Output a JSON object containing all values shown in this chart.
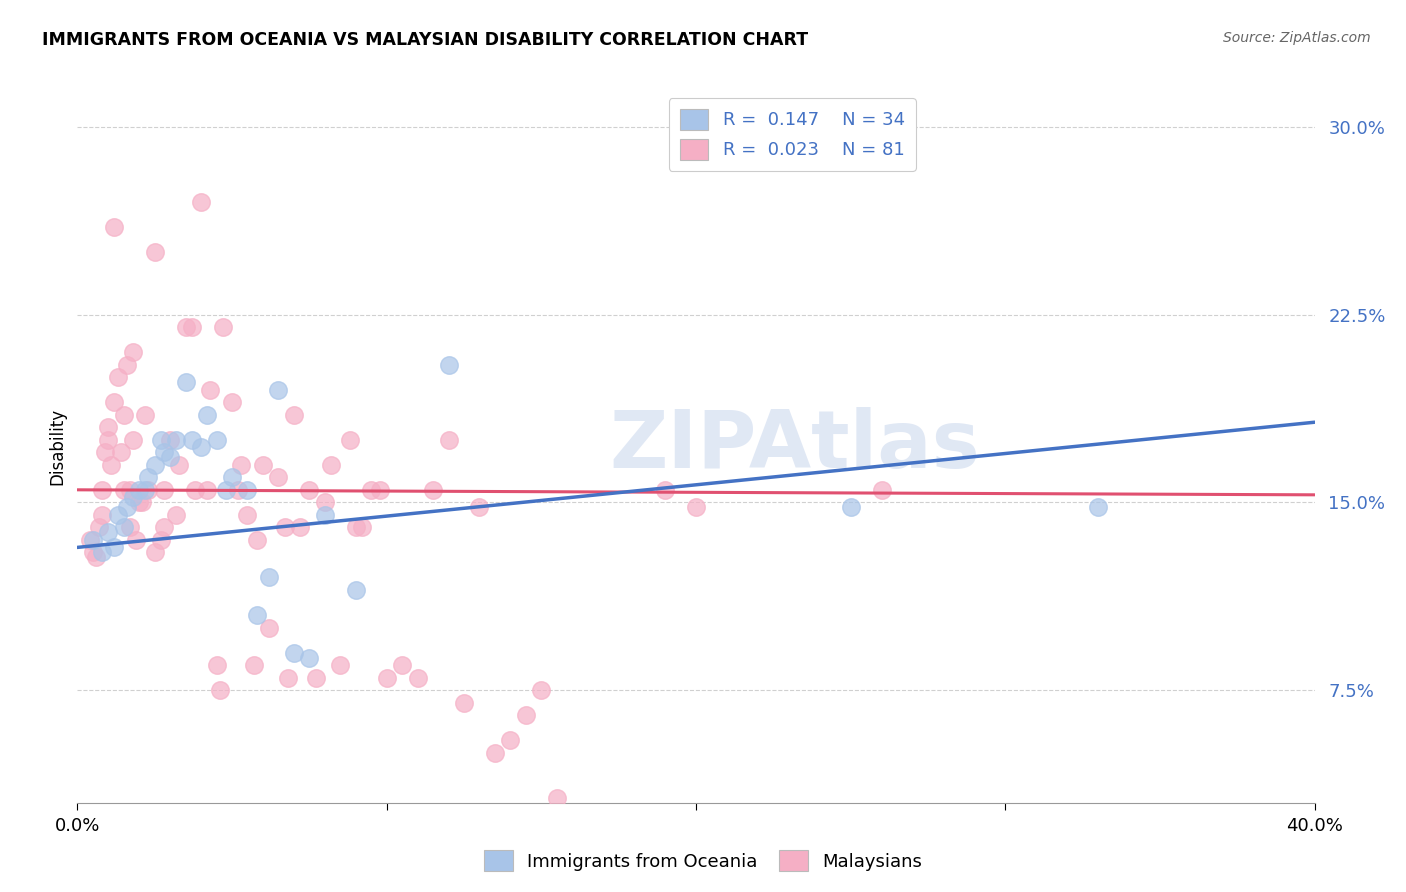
{
  "title": "IMMIGRANTS FROM OCEANIA VS MALAYSIAN DISABILITY CORRELATION CHART",
  "source": "Source: ZipAtlas.com",
  "ylabel": "Disability",
  "yticks": [
    0.075,
    0.15,
    0.225,
    0.3
  ],
  "ytick_labels": [
    "7.5%",
    "15.0%",
    "22.5%",
    "30.0%"
  ],
  "xmin": 0.0,
  "xmax": 0.4,
  "ymin": 0.03,
  "ymax": 0.315,
  "watermark": "ZIPAtlas",
  "legend_blue_r": "0.147",
  "legend_blue_n": "34",
  "legend_pink_r": "0.023",
  "legend_pink_n": "81",
  "legend_blue_label": "Immigrants from Oceania",
  "legend_pink_label": "Malaysians",
  "blue_color": "#a8c4e8",
  "pink_color": "#f5afc5",
  "blue_line_color": "#4472c4",
  "pink_line_color": "#e05070",
  "blue_scatter": [
    [
      0.005,
      0.135
    ],
    [
      0.008,
      0.13
    ],
    [
      0.01,
      0.138
    ],
    [
      0.012,
      0.132
    ],
    [
      0.013,
      0.145
    ],
    [
      0.015,
      0.14
    ],
    [
      0.016,
      0.148
    ],
    [
      0.018,
      0.152
    ],
    [
      0.02,
      0.155
    ],
    [
      0.022,
      0.155
    ],
    [
      0.023,
      0.16
    ],
    [
      0.025,
      0.165
    ],
    [
      0.027,
      0.175
    ],
    [
      0.028,
      0.17
    ],
    [
      0.03,
      0.168
    ],
    [
      0.032,
      0.175
    ],
    [
      0.035,
      0.198
    ],
    [
      0.037,
      0.175
    ],
    [
      0.04,
      0.172
    ],
    [
      0.042,
      0.185
    ],
    [
      0.045,
      0.175
    ],
    [
      0.048,
      0.155
    ],
    [
      0.05,
      0.16
    ],
    [
      0.055,
      0.155
    ],
    [
      0.058,
      0.105
    ],
    [
      0.062,
      0.12
    ],
    [
      0.065,
      0.195
    ],
    [
      0.07,
      0.09
    ],
    [
      0.075,
      0.088
    ],
    [
      0.08,
      0.145
    ],
    [
      0.09,
      0.115
    ],
    [
      0.12,
      0.205
    ],
    [
      0.25,
      0.148
    ],
    [
      0.33,
      0.148
    ]
  ],
  "pink_scatter": [
    [
      0.004,
      0.135
    ],
    [
      0.005,
      0.13
    ],
    [
      0.006,
      0.128
    ],
    [
      0.007,
      0.14
    ],
    [
      0.008,
      0.145
    ],
    [
      0.008,
      0.155
    ],
    [
      0.009,
      0.17
    ],
    [
      0.01,
      0.18
    ],
    [
      0.01,
      0.175
    ],
    [
      0.011,
      0.165
    ],
    [
      0.012,
      0.19
    ],
    [
      0.012,
      0.26
    ],
    [
      0.013,
      0.2
    ],
    [
      0.014,
      0.17
    ],
    [
      0.015,
      0.185
    ],
    [
      0.015,
      0.155
    ],
    [
      0.016,
      0.205
    ],
    [
      0.017,
      0.155
    ],
    [
      0.017,
      0.14
    ],
    [
      0.018,
      0.175
    ],
    [
      0.018,
      0.21
    ],
    [
      0.019,
      0.135
    ],
    [
      0.02,
      0.15
    ],
    [
      0.021,
      0.15
    ],
    [
      0.022,
      0.185
    ],
    [
      0.023,
      0.155
    ],
    [
      0.025,
      0.25
    ],
    [
      0.025,
      0.13
    ],
    [
      0.027,
      0.135
    ],
    [
      0.028,
      0.14
    ],
    [
      0.028,
      0.155
    ],
    [
      0.03,
      0.175
    ],
    [
      0.032,
      0.145
    ],
    [
      0.033,
      0.165
    ],
    [
      0.035,
      0.22
    ],
    [
      0.037,
      0.22
    ],
    [
      0.038,
      0.155
    ],
    [
      0.04,
      0.27
    ],
    [
      0.042,
      0.155
    ],
    [
      0.043,
      0.195
    ],
    [
      0.045,
      0.085
    ],
    [
      0.046,
      0.075
    ],
    [
      0.047,
      0.22
    ],
    [
      0.05,
      0.19
    ],
    [
      0.052,
      0.155
    ],
    [
      0.053,
      0.165
    ],
    [
      0.055,
      0.145
    ],
    [
      0.057,
      0.085
    ],
    [
      0.058,
      0.135
    ],
    [
      0.06,
      0.165
    ],
    [
      0.062,
      0.1
    ],
    [
      0.065,
      0.16
    ],
    [
      0.067,
      0.14
    ],
    [
      0.068,
      0.08
    ],
    [
      0.07,
      0.185
    ],
    [
      0.072,
      0.14
    ],
    [
      0.075,
      0.155
    ],
    [
      0.077,
      0.08
    ],
    [
      0.08,
      0.15
    ],
    [
      0.082,
      0.165
    ],
    [
      0.085,
      0.085
    ],
    [
      0.088,
      0.175
    ],
    [
      0.09,
      0.14
    ],
    [
      0.092,
      0.14
    ],
    [
      0.095,
      0.155
    ],
    [
      0.098,
      0.155
    ],
    [
      0.1,
      0.08
    ],
    [
      0.105,
      0.085
    ],
    [
      0.11,
      0.08
    ],
    [
      0.115,
      0.155
    ],
    [
      0.12,
      0.175
    ],
    [
      0.125,
      0.07
    ],
    [
      0.13,
      0.148
    ],
    [
      0.135,
      0.05
    ],
    [
      0.14,
      0.055
    ],
    [
      0.145,
      0.065
    ],
    [
      0.15,
      0.075
    ],
    [
      0.155,
      0.032
    ],
    [
      0.19,
      0.155
    ],
    [
      0.2,
      0.148
    ],
    [
      0.26,
      0.155
    ]
  ],
  "blue_trend_x": [
    0.0,
    0.4
  ],
  "blue_trend_y": [
    0.132,
    0.182
  ],
  "pink_trend_x": [
    0.0,
    0.4
  ],
  "pink_trend_y": [
    0.155,
    0.153
  ]
}
